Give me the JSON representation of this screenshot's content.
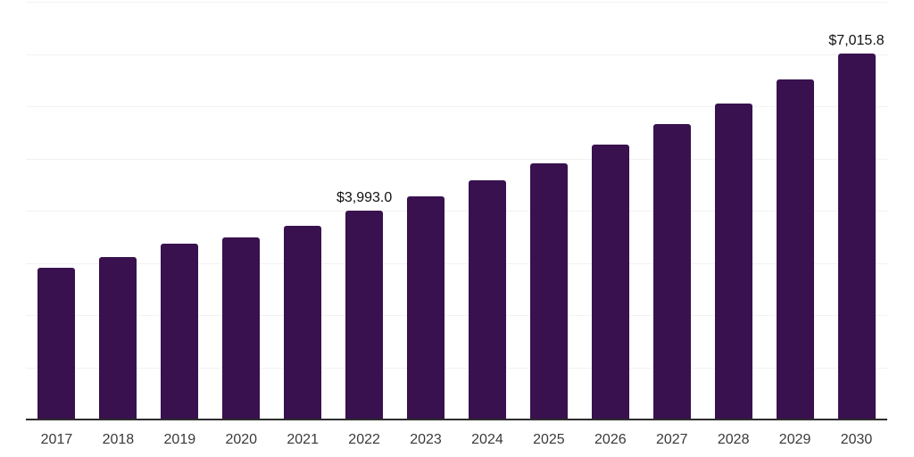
{
  "chart_data": {
    "type": "bar",
    "title": "",
    "xlabel": "",
    "ylabel": "",
    "categories": [
      "2017",
      "2018",
      "2019",
      "2020",
      "2021",
      "2022",
      "2023",
      "2024",
      "2025",
      "2026",
      "2027",
      "2028",
      "2029",
      "2030"
    ],
    "values": [
      2910,
      3110,
      3360,
      3480,
      3710,
      3993.0,
      4270,
      4580,
      4900,
      5260,
      5650,
      6050,
      6510,
      7015.8
    ],
    "data_labels": [
      {
        "category": "2022",
        "text": "$3,993.0"
      },
      {
        "category": "2030",
        "text": "$7,015.8"
      }
    ],
    "ylim": [
      0,
      8000
    ],
    "grid": true,
    "gridline_step": 1000,
    "legend": false,
    "colors": {
      "bar": "#38114e",
      "axis_line": "#2e2e2e",
      "gridline": "#f2f2f2",
      "data_label": "#111111",
      "tick_label": "#3a3a3a",
      "background": "#ffffff"
    }
  }
}
